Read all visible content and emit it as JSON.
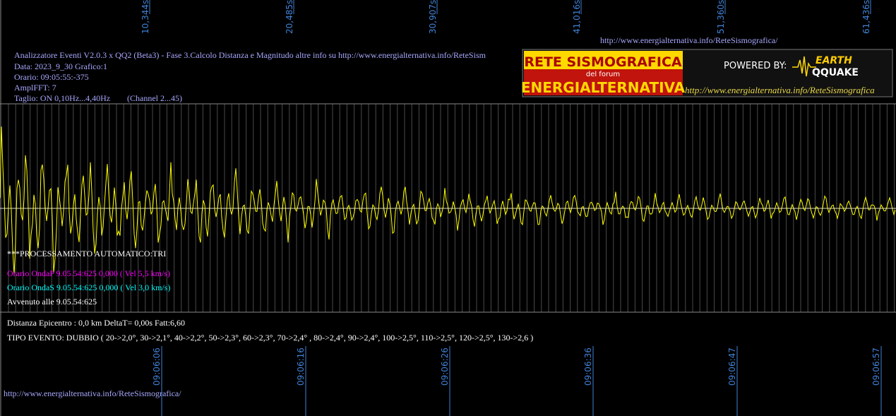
{
  "top_ticks": [
    "10,344s",
    "20,485s",
    "30,907s",
    "41,016s",
    "51,360s",
    "61,436s"
  ],
  "link_top": "http://www.energialternativa.info/ReteSismografica/",
  "info": {
    "title": "Analizzatore Eventi V2.0.3 x QQ2 (Beta3) - Fase 3.Calcolo Distanza e Magnitudo altre info su http://www.energialternativa.info/ReteSism",
    "data": "Data: 2023_9_30 Grafico:1",
    "orario": "Orario: 09:05:55:-375",
    "ampl": "AmplFFT: 7",
    "taglio": "Taglio: ON 0,10Hz...4,40Hz",
    "channel": "(Channel 2...45)"
  },
  "banner": {
    "line1": "RETE SISMOGRAFICA",
    "line2": "del forum",
    "line3": "ENERGIALTERNATIVA",
    "powered": "POWERED BY:",
    "earth": "EARTH",
    "quake": "QQUAKE",
    "url": "http://www.energialternativa.info/ReteSismografica"
  },
  "processing": {
    "header": "***PROCESSAMENTO AUTOMATICO:TRI",
    "onda_p": "Orario OndaP 9.05.54:625  0,000 ( Vel 5,5 km/s)",
    "onda_s": "Orario OndaS 9.05.54:625  0,000 ( Vel 3,0 km/s)",
    "avvenuto": "Avvenuto alle 9.05.54:625"
  },
  "result": {
    "distanza": "Distanza Epicentro : 0,0 km DeltaT= 0,00s  Fatt:6,60",
    "tipo": "TIPO EVENTO: DUBBIO ( 20->2,0°, 30->2,1°, 40->2,2°, 50->2,3°, 60->2,3°, 70->2,4° , 80->2,4°, 90->2,4°, 100->2,5°, 110->2,5°, 120->2,5°, 130->2,6 )"
  },
  "bottom_ticks": [
    "09:06:06",
    "09:06:16",
    "09:06:26",
    "09:06:36",
    "09:06:47",
    "09:06:57"
  ],
  "link_bottom": "http://www.energialternativa.info/ReteSismografica/"
}
